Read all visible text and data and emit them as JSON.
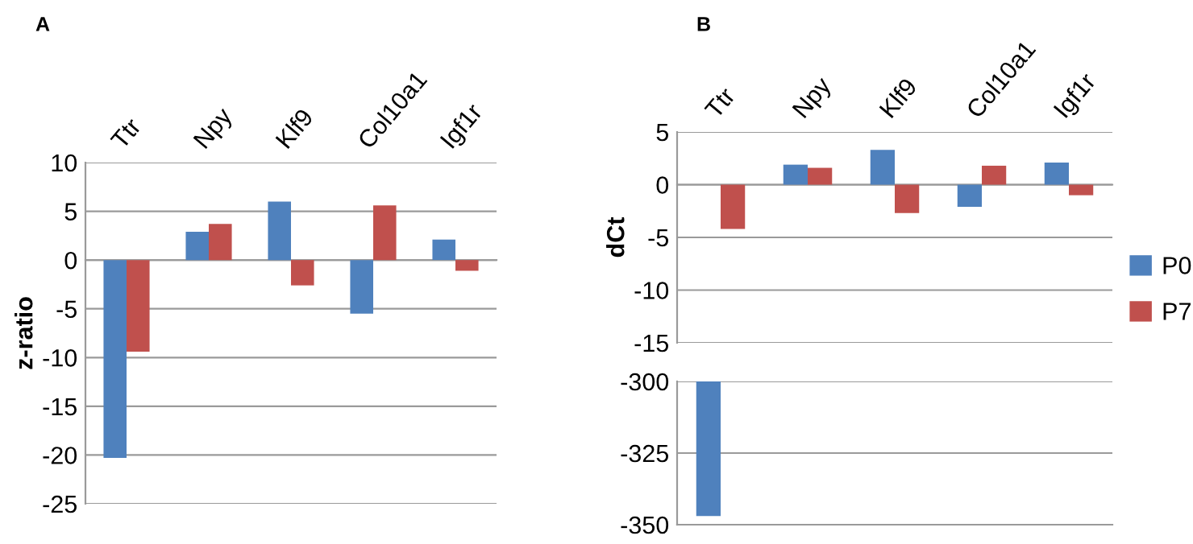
{
  "chart_data": [
    {
      "type": "bar",
      "title": "A",
      "ylabel": "z-ratio",
      "categories": [
        "Ttr",
        "Npy",
        "Klf9",
        "Col10a1",
        "Igf1r"
      ],
      "series": [
        {
          "color": "#4f81bd",
          "values": [
            -20.3,
            2.9,
            6.0,
            -5.5,
            2.1
          ]
        },
        {
          "color": "#c0504d",
          "values": [
            -9.4,
            3.7,
            -2.6,
            5.6,
            -1.1
          ]
        }
      ],
      "ylim": [
        -25,
        10
      ],
      "yticks": [
        -25,
        -20,
        -15,
        -10,
        -5,
        0,
        5,
        10
      ],
      "grid": "y",
      "legend": false
    },
    {
      "type": "bar",
      "title": "B",
      "ylabel": "dCt",
      "categories": [
        "Ttr",
        "Npy",
        "Klf9",
        "Col10a1",
        "Igf1r"
      ],
      "series": [
        {
          "name": "P0",
          "color": "#4f81bd",
          "values": [
            null,
            1.9,
            3.3,
            -2.1,
            2.1
          ]
        },
        {
          "name": "P7",
          "color": "#c0504d",
          "values": [
            -4.2,
            1.6,
            -2.7,
            1.8,
            -1.0
          ]
        }
      ],
      "ylim": [
        -15,
        5
      ],
      "yticks": [
        -15,
        -10,
        -5,
        0,
        5
      ],
      "grid": "y",
      "legend": "right"
    },
    {
      "type": "bar",
      "categories": [
        null,
        null,
        null,
        null,
        null
      ],
      "series": [
        {
          "color": "#4f81bd",
          "values": [
            -347,
            null,
            null,
            null,
            null
          ]
        },
        {
          "color": "#c0504d",
          "values": [
            null,
            null,
            null,
            null,
            null
          ]
        }
      ],
      "ylim": [
        -350,
        -300
      ],
      "yticks": [
        -350,
        -325,
        -300
      ],
      "grid": "y",
      "legend": false,
      "tick_labels": "y"
    }
  ]
}
